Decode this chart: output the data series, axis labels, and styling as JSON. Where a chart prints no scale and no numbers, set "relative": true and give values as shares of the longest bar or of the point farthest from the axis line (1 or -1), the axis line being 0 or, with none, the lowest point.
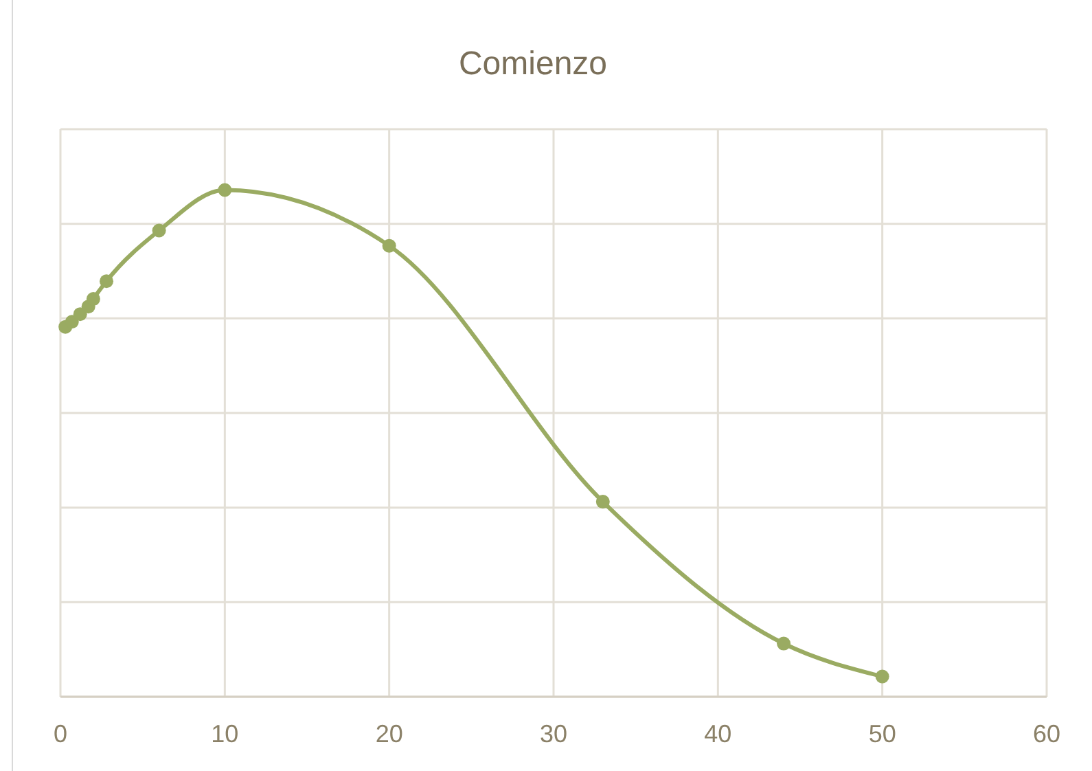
{
  "chart_data": {
    "type": "line",
    "title": "Comienzo",
    "relative": true,
    "xlim": [
      0,
      60
    ],
    "xticks": [
      0,
      10,
      20,
      30,
      40,
      50,
      60
    ],
    "series": [
      {
        "color": "#9aab62",
        "x": [
          0.3,
          0.7,
          1.2,
          1.7,
          2,
          2.8,
          6,
          10,
          20,
          33,
          44,
          50
        ],
        "values": [
          0.73,
          0.74,
          0.755,
          0.77,
          0.785,
          0.82,
          0.92,
          1,
          0.89,
          0.385,
          0.105,
          0.04
        ]
      }
    ],
    "grid": true,
    "marker": "circle",
    "line_style": "solid"
  }
}
